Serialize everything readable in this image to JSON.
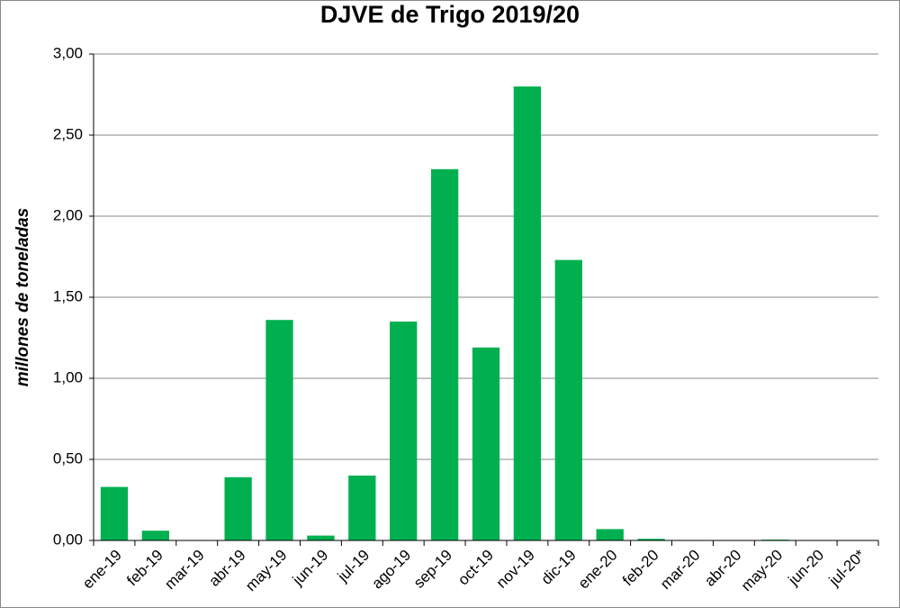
{
  "chart_data": {
    "type": "bar",
    "title": "DJVE de Trigo 2019/20",
    "y_label": "millones de toneladas",
    "categories": [
      "ene-19",
      "feb-19",
      "mar-19",
      "abr-19",
      "may-19",
      "jun-19",
      "jul-19",
      "ago-19",
      "sep-19",
      "oct-19",
      "nov-19",
      "dic-19",
      "ene-20",
      "feb-20",
      "mar-20",
      "abr-20",
      "may-20",
      "jun-20",
      "jul-20*"
    ],
    "values": [
      0.33,
      0.06,
      0,
      0.39,
      1.36,
      0.03,
      0.4,
      1.35,
      2.29,
      1.19,
      2.8,
      1.73,
      0.07,
      0.01,
      0,
      0,
      0.005,
      0,
      0
    ],
    "color": "#00b050",
    "ylim": [
      0,
      3
    ],
    "yticks": [
      {
        "value": 0,
        "label": "0,00"
      },
      {
        "value": 0.5,
        "label": "0,50"
      },
      {
        "value": 1,
        "label": "1,00"
      },
      {
        "value": 1.5,
        "label": "1,50"
      },
      {
        "value": 2,
        "label": "2,00"
      },
      {
        "value": 2.5,
        "label": "2,50"
      },
      {
        "value": 3,
        "label": "3,00"
      }
    ],
    "grid": true
  }
}
